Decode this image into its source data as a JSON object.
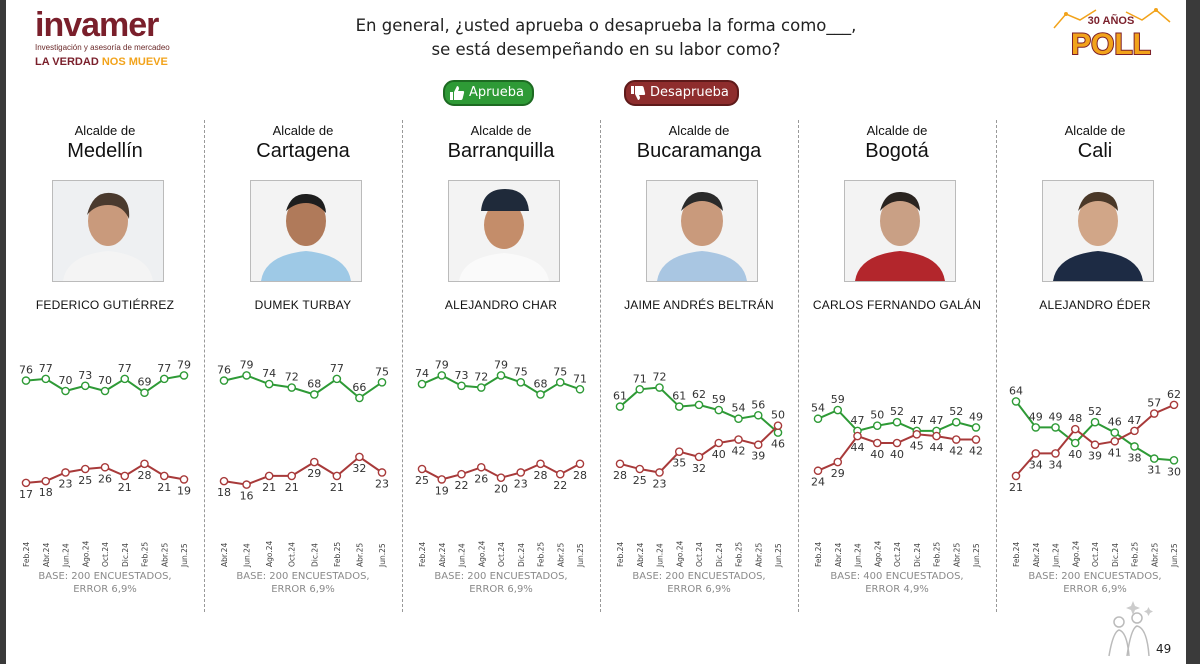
{
  "header": {
    "logo_text": "invamer",
    "logo_subtitle": "Investigación y asesoría de mercadeo",
    "tagline_part1": "LA VERDAD ",
    "tagline_part2": "NOS MUEVE",
    "question_line1": "En general, ¿usted aprueba o desaprueba la forma como___,",
    "question_line2": "se está desempeñando en su labor como?",
    "badge_top": "30 AÑOS",
    "badge_main": "POLL"
  },
  "legend": {
    "approve": "Aprueba",
    "disapprove": "Desaprueba"
  },
  "colors": {
    "approve": "#2e9a36",
    "disapprove": "#a83a3a"
  },
  "page_number": "49",
  "panels": [
    {
      "office": "Alcalde de",
      "city": "Medellín",
      "name": "FEDERICO GUTIÉRREZ",
      "base": "BASE: 200 ENCUESTADOS,",
      "error": "ERROR 6,9%"
    },
    {
      "office": "Alcalde de",
      "city": "Cartagena",
      "name": "DUMEK TURBAY",
      "base": "BASE: 200 ENCUESTADOS,",
      "error": "ERROR 6,9%"
    },
    {
      "office": "Alcalde de",
      "city": "Barranquilla",
      "name": "ALEJANDRO CHAR",
      "base": "BASE: 200 ENCUESTADOS,",
      "error": "ERROR 6,9%"
    },
    {
      "office": "Alcalde de",
      "city": "Bucaramanga",
      "name": "JAIME ANDRÉS BELTRÁN",
      "base": "BASE: 200 ENCUESTADOS,",
      "error": "ERROR 6,9%"
    },
    {
      "office": "Alcalde de",
      "city": "Bogotá",
      "name": "CARLOS FERNANDO GALÁN",
      "base": "BASE: 400 ENCUESTADOS,",
      "error": "ERROR 4,9%"
    },
    {
      "office": "Alcalde de",
      "city": "Cali",
      "name": "ALEJANDRO ÉDER",
      "base": "BASE: 200 ENCUESTADOS,",
      "error": "ERROR 6,9%"
    }
  ],
  "chart_data": [
    {
      "type": "line",
      "title": "Alcalde de Medellín",
      "ylim": [
        0,
        100
      ],
      "categories": [
        "Feb.24",
        "Abr.24",
        "Jun.24",
        "Ago.24",
        "Oct.24",
        "Dic.24",
        "Feb.25",
        "Abr.25",
        "Jun.25"
      ],
      "series": [
        {
          "name": "Aprueba",
          "values": [
            76,
            77,
            70,
            73,
            70,
            77,
            69,
            77,
            79
          ]
        },
        {
          "name": "Desaprueba",
          "values": [
            17,
            18,
            23,
            25,
            26,
            21,
            28,
            21,
            19
          ]
        }
      ]
    },
    {
      "type": "line",
      "title": "Alcalde de Cartagena",
      "ylim": [
        0,
        100
      ],
      "categories": [
        "Abr.24",
        "Jun.24",
        "Ago.24",
        "Oct.24",
        "Dic.24",
        "Feb.25",
        "Abr.25",
        "Jun.25"
      ],
      "series": [
        {
          "name": "Aprueba",
          "values": [
            76,
            79,
            74,
            72,
            68,
            77,
            66,
            75
          ]
        },
        {
          "name": "Desaprueba",
          "values": [
            18,
            16,
            21,
            21,
            29,
            21,
            32,
            23
          ]
        }
      ]
    },
    {
      "type": "line",
      "title": "Alcalde de Barranquilla",
      "ylim": [
        0,
        100
      ],
      "categories": [
        "Feb.24",
        "Abr.24",
        "Jun.24",
        "Ago.24",
        "Oct.24",
        "Dic.24",
        "Feb.25",
        "Abr.25",
        "Jun.25"
      ],
      "series": [
        {
          "name": "Aprueba",
          "values": [
            74,
            79,
            73,
            72,
            79,
            75,
            68,
            75,
            71
          ]
        },
        {
          "name": "Desaprueba",
          "values": [
            25,
            19,
            22,
            26,
            20,
            23,
            28,
            22,
            28
          ]
        }
      ]
    },
    {
      "type": "line",
      "title": "Alcalde de Bucaramanga",
      "ylim": [
        0,
        100
      ],
      "categories": [
        "Feb.24",
        "Abr.24",
        "Jun.24",
        "Ago.24",
        "Oct.24",
        "Dic.24",
        "Feb.25",
        "Abr.25",
        "Jun.25"
      ],
      "series": [
        {
          "name": "Aprueba",
          "values": [
            61,
            71,
            72,
            61,
            62,
            59,
            54,
            56,
            46
          ]
        },
        {
          "name": "Desaprueba",
          "values": [
            28,
            25,
            23,
            35,
            32,
            40,
            42,
            39,
            50
          ]
        }
      ]
    },
    {
      "type": "line",
      "title": "Alcalde de Bogotá",
      "ylim": [
        0,
        100
      ],
      "categories": [
        "Feb.24",
        "Abr.24",
        "Jun.24",
        "Ago.24",
        "Oct.24",
        "Dic.24",
        "Feb.25",
        "Abr.25",
        "Jun.25"
      ],
      "series": [
        {
          "name": "Aprueba",
          "values": [
            54,
            59,
            47,
            50,
            52,
            47,
            47,
            52,
            49
          ]
        },
        {
          "name": "Desaprueba",
          "values": [
            24,
            29,
            44,
            40,
            40,
            45,
            44,
            42,
            42
          ]
        }
      ]
    },
    {
      "type": "line",
      "title": "Alcalde de Cali",
      "ylim": [
        0,
        100
      ],
      "categories": [
        "Feb.24",
        "Abr.24",
        "Jun.24",
        "Ago.24",
        "Oct.24",
        "Dic.24",
        "Feb.25",
        "Abr.25",
        "Jun.25"
      ],
      "series": [
        {
          "name": "Aprueba",
          "values": [
            64,
            49,
            49,
            40,
            52,
            46,
            38,
            31,
            30
          ]
        },
        {
          "name": "Desaprueba",
          "values": [
            21,
            34,
            34,
            48,
            39,
            41,
            47,
            57,
            62
          ]
        }
      ]
    }
  ]
}
